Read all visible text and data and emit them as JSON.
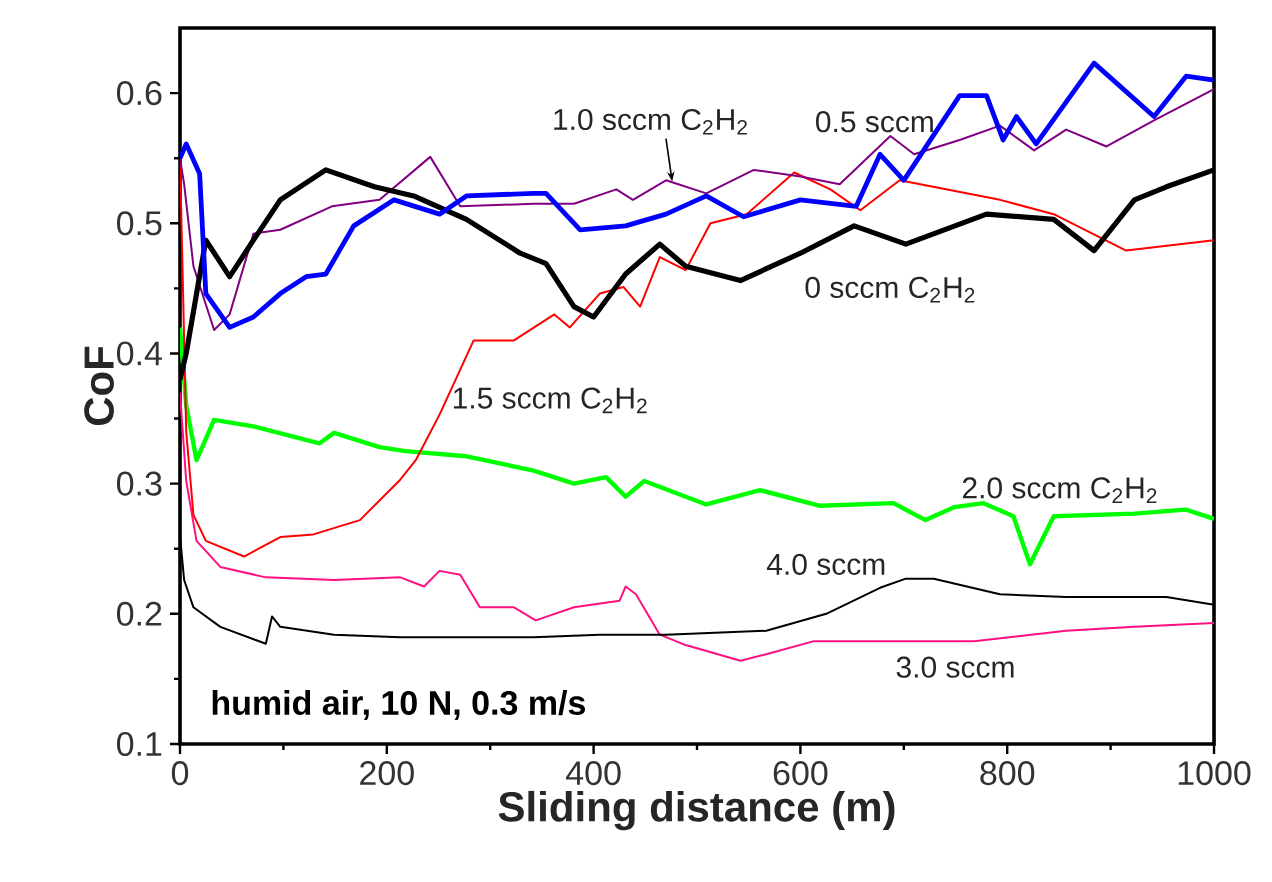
{
  "chart_data": {
    "type": "line",
    "xlabel": "Sliding distance (m)",
    "ylabel": "CoF",
    "xlim": [
      0,
      1000
    ],
    "ylim": [
      0.1,
      0.65
    ],
    "xticks": [
      0,
      200,
      400,
      600,
      800,
      1000
    ],
    "yticks": [
      0.1,
      0.2,
      0.3,
      0.4,
      0.5,
      0.6
    ],
    "legend": false,
    "grid": false,
    "marker": "none",
    "line_style": "solid",
    "annotations": [
      "humid air, 10 N, 0.3 m/s"
    ],
    "series": [
      {
        "name": "2.0 sccm C$_{2}$H$_{2}$",
        "color": "#00ff00",
        "x": [
          0,
          6,
          16,
          33,
          71,
          135,
          149,
          193,
          218,
          277,
          342,
          381,
          412,
          431,
          449,
          509,
          561,
          619,
          690,
          721,
          749,
          777,
          806,
          822,
          845,
          923,
          973,
          1000
        ],
        "values": [
          0.42,
          0.36,
          0.318,
          0.349,
          0.344,
          0.331,
          0.339,
          0.328,
          0.325,
          0.321,
          0.31,
          0.3,
          0.305,
          0.29,
          0.302,
          0.284,
          0.295,
          0.283,
          0.285,
          0.272,
          0.282,
          0.285,
          0.275,
          0.238,
          0.275,
          0.277,
          0.28,
          0.273
        ]
      },
      {
        "name": "3.0 sccm",
        "color": "#ff1080",
        "x": [
          0,
          6,
          16,
          39,
          83,
          149,
          213,
          236,
          251,
          271,
          290,
          323,
          344,
          381,
          425,
          431,
          441,
          464,
          489,
          542,
          567,
          613,
          729,
          768,
          857,
          923,
          1000
        ],
        "values": [
          0.37,
          0.302,
          0.256,
          0.236,
          0.228,
          0.226,
          0.228,
          0.221,
          0.233,
          0.23,
          0.205,
          0.205,
          0.195,
          0.205,
          0.21,
          0.221,
          0.215,
          0.184,
          0.176,
          0.164,
          0.169,
          0.179,
          0.179,
          0.179,
          0.187,
          0.19,
          0.193
        ]
      },
      {
        "name": "4.0 sccm",
        "color": "#000000",
        "x": [
          0,
          4,
          13,
          39,
          83,
          89,
          97,
          149,
          213,
          342,
          406,
          470,
          567,
          625,
          677,
          702,
          729,
          793,
          857,
          954,
          1000
        ],
        "values": [
          0.26,
          0.226,
          0.205,
          0.19,
          0.177,
          0.198,
          0.19,
          0.184,
          0.182,
          0.182,
          0.184,
          0.184,
          0.187,
          0.2,
          0.22,
          0.227,
          0.227,
          0.215,
          0.213,
          0.213,
          0.207
        ]
      },
      {
        "name": "1.5 sccm C$_{2}$H$_{2}$",
        "color": "#ff0000",
        "x": [
          0,
          6,
          13,
          25,
          62,
          97,
          129,
          174,
          213,
          228,
          251,
          284,
          323,
          362,
          377,
          406,
          429,
          445,
          464,
          489,
          513,
          548,
          594,
          629,
          658,
          696,
          793,
          845,
          915,
          1000
        ],
        "values": [
          0.55,
          0.34,
          0.276,
          0.256,
          0.244,
          0.259,
          0.261,
          0.272,
          0.303,
          0.318,
          0.353,
          0.41,
          0.41,
          0.43,
          0.42,
          0.446,
          0.451,
          0.436,
          0.474,
          0.464,
          0.5,
          0.507,
          0.539,
          0.526,
          0.51,
          0.533,
          0.518,
          0.507,
          0.479,
          0.487
        ]
      },
      {
        "name": "1.0 sccm C$_{2}$H$_{2}$",
        "color": "#800080",
        "x": [
          0,
          4,
          13,
          33,
          48,
          71,
          97,
          147,
          193,
          242,
          271,
          342,
          381,
          422,
          438,
          470,
          509,
          555,
          600,
          638,
          687,
          710,
          754,
          793,
          826,
          857,
          896,
          942,
          1000
        ],
        "values": [
          0.55,
          0.53,
          0.467,
          0.418,
          0.43,
          0.492,
          0.495,
          0.513,
          0.518,
          0.551,
          0.513,
          0.515,
          0.515,
          0.526,
          0.518,
          0.533,
          0.523,
          0.541,
          0.536,
          0.53,
          0.567,
          0.553,
          0.564,
          0.575,
          0.556,
          0.572,
          0.559,
          0.579,
          0.603
        ]
      },
      {
        "name": "0 sccm C$_{2}$H$_{2}$",
        "color": "#000000",
        "x": [
          0,
          6,
          16,
          25,
          48,
          71,
          97,
          141,
          188,
          226,
          277,
          329,
          354,
          381,
          400,
          431,
          464,
          489,
          542,
          600,
          652,
          702,
          780,
          845,
          884,
          923,
          954,
          1000
        ],
        "values": [
          0.38,
          0.4,
          0.446,
          0.487,
          0.459,
          0.487,
          0.518,
          0.541,
          0.528,
          0.521,
          0.503,
          0.477,
          0.469,
          0.436,
          0.428,
          0.461,
          0.484,
          0.467,
          0.456,
          0.477,
          0.498,
          0.484,
          0.507,
          0.503,
          0.479,
          0.518,
          0.528,
          0.541
        ]
      },
      {
        "name": "0.5 sccm",
        "color": "#0000ff",
        "x": [
          0,
          6,
          19,
          25,
          48,
          71,
          97,
          122,
          141,
          168,
          207,
          251,
          277,
          342,
          354,
          387,
          431,
          470,
          509,
          545,
          600,
          654,
          677,
          700,
          754,
          780,
          796,
          809,
          828,
          884,
          942,
          973,
          1000
        ],
        "values": [
          0.55,
          0.561,
          0.538,
          0.446,
          0.42,
          0.428,
          0.446,
          0.459,
          0.461,
          0.498,
          0.518,
          0.507,
          0.521,
          0.523,
          0.523,
          0.495,
          0.498,
          0.507,
          0.521,
          0.505,
          0.518,
          0.513,
          0.553,
          0.533,
          0.598,
          0.598,
          0.564,
          0.582,
          0.561,
          0.623,
          0.582,
          0.613,
          0.61
        ]
      }
    ]
  }
}
